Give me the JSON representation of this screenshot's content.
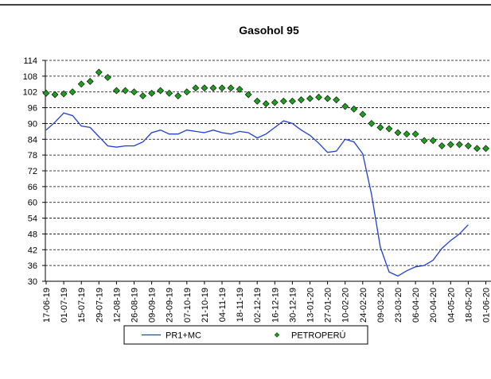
{
  "chart_data": {
    "type": "line-scatter",
    "title": "Gasohol 95",
    "categories": [
      "17-06-19",
      null,
      "01-07-19",
      null,
      "15-07-19",
      null,
      "29-07-19",
      null,
      "12-08-19",
      null,
      "26-08-19",
      null,
      "09-09-19",
      null,
      "23-09-19",
      null,
      "07-10-19",
      null,
      "21-10-19",
      null,
      "04-11-19",
      null,
      "18-11-19",
      null,
      "02-12-19",
      null,
      "16-12-19",
      null,
      "30-12-19",
      null,
      "13-01-20",
      null,
      "27-01-20",
      null,
      "10-02-20",
      null,
      "24-02-20",
      null,
      "09-03-20",
      null,
      "23-03-20",
      null,
      "06-04-20",
      null,
      "20-04-20",
      null,
      "04-05-20",
      null,
      "18-05-20",
      null,
      "01-06-20"
    ],
    "series": [
      {
        "name": "PR1+MC",
        "color": "#1f3fd1",
        "style": "line",
        "values": [
          87.5,
          90.5,
          94,
          93,
          89,
          88.5,
          85,
          81.5,
          81,
          81.5,
          81.5,
          83,
          86.5,
          87.5,
          86,
          86,
          87.5,
          87,
          86.5,
          87.5,
          86.5,
          86,
          87,
          86.5,
          84.5,
          86,
          88.5,
          91,
          90,
          87.5,
          85.5,
          82.5,
          79,
          79.5,
          84,
          83,
          78.5,
          63,
          43,
          33.5,
          32,
          34,
          35.5,
          36,
          38,
          42.5,
          45.5,
          48,
          51.5,
          null,
          null
        ]
      },
      {
        "name": "PETROPERÚ",
        "color": "#1e9e1e",
        "style": "marker",
        "values": [
          101.5,
          101,
          101.3,
          102,
          105,
          106,
          109.5,
          107.5,
          102.5,
          102.5,
          102,
          100.5,
          101.5,
          102.5,
          101.5,
          100.5,
          102,
          103.5,
          103.5,
          103.5,
          103.5,
          103.5,
          103,
          101,
          98.5,
          97.5,
          98,
          98.5,
          98.5,
          99,
          99.5,
          100,
          99.5,
          99,
          96.5,
          95.5,
          93.5,
          90,
          88.5,
          88,
          86.5,
          86,
          86,
          83.5,
          83.5,
          81.5,
          82,
          82,
          81.5,
          80.5,
          80.5
        ]
      }
    ],
    "ylim": [
      30,
      114
    ],
    "yticks": [
      30,
      36,
      42,
      48,
      54,
      60,
      66,
      72,
      78,
      84,
      90,
      96,
      102,
      108,
      114
    ],
    "grid": true
  }
}
